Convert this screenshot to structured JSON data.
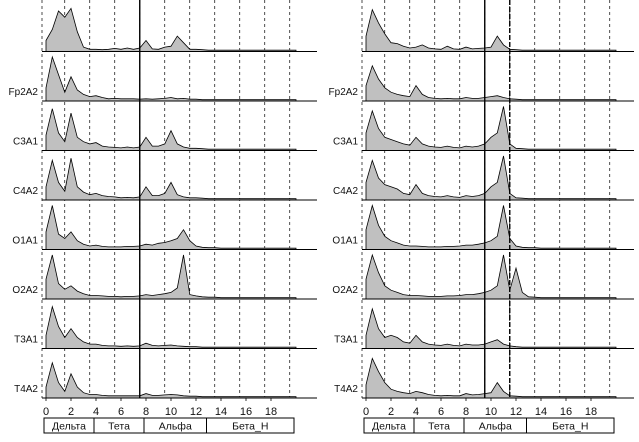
{
  "chart_data": {
    "type": "area",
    "title": "",
    "xlabel": "",
    "ylabel": "",
    "xlim": [
      0,
      20
    ],
    "x_ticks": [
      "0",
      "2",
      "4",
      "6",
      "8",
      "10",
      "12",
      "14",
      "16",
      "18"
    ],
    "x_tick_values": [
      0,
      2,
      4,
      6,
      8,
      10,
      12,
      14,
      16,
      18
    ],
    "band_boundaries": [
      1.5,
      3.5,
      5.5,
      7.5,
      9.5,
      11.5,
      13.5,
      15.5,
      17.5,
      19.5
    ],
    "bands": [
      {
        "name": "Дельта",
        "range": [
          0,
          4
        ]
      },
      {
        "name": "Тета",
        "range": [
          4,
          8
        ]
      },
      {
        "name": "Альфа",
        "range": [
          8,
          13
        ]
      },
      {
        "name": "Бета_Н",
        "range": [
          13,
          20
        ]
      }
    ],
    "fill_color": "#c0c0c0",
    "line_color": "#000000",
    "x": [
      0,
      0.5,
      1,
      1.5,
      2,
      2.5,
      3,
      3.5,
      4,
      4.5,
      5,
      5.5,
      6,
      6.5,
      7,
      7.5,
      8,
      8.5,
      9,
      9.5,
      10,
      10.5,
      11,
      11.5,
      12,
      12.5,
      13,
      13.5,
      14,
      14.5,
      15,
      15.5,
      16,
      16.5,
      17,
      17.5,
      18,
      18.5,
      19,
      19.5,
      20
    ],
    "panels": [
      {
        "cursor_freq": 7.5,
        "channels": [
          {
            "label": "",
            "values": [
              0.25,
              0.5,
              0.92,
              0.78,
              0.98,
              0.45,
              0.1,
              0.05,
              0.05,
              0.04,
              0.05,
              0.07,
              0.05,
              0.08,
              0.05,
              0.08,
              0.25,
              0.06,
              0.05,
              0.1,
              0.12,
              0.35,
              0.2,
              0.05,
              0.05,
              0.04,
              0.03,
              0.03,
              0.03,
              0.03,
              0.03,
              0.03,
              0.03,
              0.03,
              0.03,
              0.03,
              0.03,
              0.03,
              0.03,
              0.03,
              0.03
            ]
          },
          {
            "label": "Fp2A2",
            "values": [
              0.3,
              1.0,
              0.6,
              0.2,
              0.55,
              0.25,
              0.15,
              0.1,
              0.12,
              0.08,
              0.05,
              0.06,
              0.05,
              0.05,
              0.05,
              0.04,
              0.05,
              0.04,
              0.05,
              0.06,
              0.08,
              0.05,
              0.06,
              0.04,
              0.04,
              0.03,
              0.03,
              0.03,
              0.03,
              0.03,
              0.03,
              0.03,
              0.03,
              0.03,
              0.03,
              0.03,
              0.03,
              0.03,
              0.03,
              0.03,
              0.03
            ]
          },
          {
            "label": "C3A1",
            "values": [
              0.35,
              0.95,
              0.4,
              0.2,
              0.85,
              0.3,
              0.2,
              0.15,
              0.18,
              0.1,
              0.08,
              0.07,
              0.06,
              0.08,
              0.06,
              0.08,
              0.3,
              0.1,
              0.1,
              0.15,
              0.45,
              0.15,
              0.08,
              0.05,
              0.05,
              0.04,
              0.03,
              0.03,
              0.03,
              0.03,
              0.03,
              0.03,
              0.03,
              0.03,
              0.03,
              0.03,
              0.03,
              0.03,
              0.03,
              0.03,
              0.03
            ]
          },
          {
            "label": "C4A2",
            "values": [
              0.3,
              0.9,
              0.4,
              0.2,
              0.95,
              0.3,
              0.18,
              0.12,
              0.15,
              0.1,
              0.08,
              0.07,
              0.05,
              0.06,
              0.05,
              0.07,
              0.3,
              0.1,
              0.1,
              0.15,
              0.4,
              0.12,
              0.07,
              0.05,
              0.05,
              0.04,
              0.03,
              0.03,
              0.03,
              0.03,
              0.03,
              0.03,
              0.03,
              0.03,
              0.03,
              0.03,
              0.03,
              0.03,
              0.03,
              0.03,
              0.03
            ]
          },
          {
            "label": "O1A1",
            "values": [
              0.4,
              1.0,
              0.35,
              0.25,
              0.4,
              0.2,
              0.12,
              0.08,
              0.1,
              0.07,
              0.06,
              0.06,
              0.06,
              0.07,
              0.07,
              0.08,
              0.12,
              0.1,
              0.14,
              0.16,
              0.2,
              0.25,
              0.45,
              0.2,
              0.08,
              0.05,
              0.04,
              0.04,
              0.03,
              0.03,
              0.03,
              0.03,
              0.03,
              0.03,
              0.03,
              0.03,
              0.03,
              0.03,
              0.03,
              0.03,
              0.03
            ]
          },
          {
            "label": "O2A2",
            "values": [
              0.45,
              1.0,
              0.35,
              0.22,
              0.3,
              0.18,
              0.12,
              0.08,
              0.08,
              0.07,
              0.06,
              0.06,
              0.05,
              0.06,
              0.06,
              0.07,
              0.1,
              0.08,
              0.1,
              0.12,
              0.15,
              0.25,
              1.0,
              0.1,
              0.07,
              0.05,
              0.04,
              0.04,
              0.03,
              0.03,
              0.03,
              0.03,
              0.03,
              0.03,
              0.03,
              0.03,
              0.03,
              0.03,
              0.03,
              0.03,
              0.03
            ]
          },
          {
            "label": "T3A1",
            "values": [
              0.3,
              0.95,
              0.5,
              0.25,
              0.45,
              0.25,
              0.15,
              0.1,
              0.1,
              0.07,
              0.06,
              0.06,
              0.05,
              0.06,
              0.05,
              0.06,
              0.12,
              0.07,
              0.06,
              0.07,
              0.08,
              0.06,
              0.05,
              0.04,
              0.04,
              0.03,
              0.03,
              0.03,
              0.03,
              0.03,
              0.03,
              0.03,
              0.03,
              0.03,
              0.03,
              0.03,
              0.03,
              0.03,
              0.03,
              0.03,
              0.03
            ]
          },
          {
            "label": "T4A2",
            "values": [
              0.25,
              0.8,
              0.35,
              0.15,
              0.55,
              0.25,
              0.12,
              0.08,
              0.08,
              0.06,
              0.05,
              0.05,
              0.05,
              0.05,
              0.05,
              0.05,
              0.1,
              0.06,
              0.06,
              0.07,
              0.08,
              0.07,
              0.05,
              0.04,
              0.04,
              0.03,
              0.03,
              0.03,
              0.03,
              0.03,
              0.03,
              0.03,
              0.03,
              0.03,
              0.03,
              0.03,
              0.03,
              0.03,
              0.03,
              0.03,
              0.03
            ]
          }
        ]
      },
      {
        "cursor_freq": 9.5,
        "cursor_freq_2": 11.5,
        "channels": [
          {
            "label": "",
            "values": [
              0.35,
              0.95,
              0.65,
              0.4,
              0.2,
              0.18,
              0.12,
              0.08,
              0.1,
              0.15,
              0.08,
              0.06,
              0.05,
              0.12,
              0.06,
              0.05,
              0.1,
              0.06,
              0.07,
              0.08,
              0.1,
              0.35,
              0.15,
              0.05,
              0.04,
              0.03,
              0.03,
              0.03,
              0.03,
              0.03,
              0.03,
              0.03,
              0.03,
              0.03,
              0.03,
              0.03,
              0.03,
              0.03,
              0.03,
              0.03,
              0.03
            ]
          },
          {
            "label": "Fp2A2",
            "values": [
              0.35,
              0.8,
              0.5,
              0.3,
              0.2,
              0.15,
              0.12,
              0.1,
              0.35,
              0.15,
              0.08,
              0.06,
              0.05,
              0.06,
              0.05,
              0.05,
              0.08,
              0.06,
              0.06,
              0.08,
              0.1,
              0.12,
              0.08,
              0.05,
              0.04,
              0.03,
              0.03,
              0.03,
              0.03,
              0.03,
              0.03,
              0.03,
              0.03,
              0.03,
              0.03,
              0.03,
              0.03,
              0.03,
              0.03,
              0.03,
              0.03
            ]
          },
          {
            "label": "C3A1",
            "values": [
              0.4,
              0.9,
              0.5,
              0.3,
              0.25,
              0.2,
              0.15,
              0.12,
              0.3,
              0.15,
              0.1,
              0.08,
              0.07,
              0.1,
              0.07,
              0.06,
              0.1,
              0.08,
              0.1,
              0.15,
              0.3,
              0.4,
              1.0,
              0.15,
              0.05,
              0.04,
              0.03,
              0.03,
              0.03,
              0.03,
              0.03,
              0.03,
              0.03,
              0.03,
              0.03,
              0.03,
              0.03,
              0.03,
              0.03,
              0.03,
              0.03
            ]
          },
          {
            "label": "C4A2",
            "values": [
              0.4,
              0.9,
              0.5,
              0.35,
              0.3,
              0.25,
              0.15,
              0.12,
              0.35,
              0.15,
              0.1,
              0.08,
              0.07,
              0.1,
              0.07,
              0.06,
              0.1,
              0.08,
              0.1,
              0.15,
              0.3,
              0.4,
              1.0,
              0.15,
              0.05,
              0.04,
              0.03,
              0.03,
              0.03,
              0.03,
              0.03,
              0.03,
              0.03,
              0.03,
              0.03,
              0.03,
              0.03,
              0.03,
              0.03,
              0.03,
              0.03
            ]
          },
          {
            "label": "O1A1",
            "values": [
              0.45,
              1.0,
              0.55,
              0.3,
              0.2,
              0.15,
              0.1,
              0.08,
              0.08,
              0.07,
              0.06,
              0.06,
              0.06,
              0.07,
              0.07,
              0.08,
              0.1,
              0.1,
              0.12,
              0.15,
              0.2,
              0.3,
              1.0,
              0.25,
              0.08,
              0.05,
              0.04,
              0.04,
              0.03,
              0.03,
              0.03,
              0.03,
              0.03,
              0.03,
              0.03,
              0.03,
              0.03,
              0.03,
              0.03,
              0.03,
              0.03
            ]
          },
          {
            "label": "O2A2",
            "values": [
              0.45,
              1.0,
              0.6,
              0.3,
              0.2,
              0.15,
              0.1,
              0.08,
              0.08,
              0.07,
              0.06,
              0.06,
              0.06,
              0.07,
              0.07,
              0.08,
              0.1,
              0.1,
              0.12,
              0.15,
              0.2,
              0.3,
              1.0,
              0.2,
              0.7,
              0.15,
              0.05,
              0.04,
              0.03,
              0.03,
              0.03,
              0.03,
              0.03,
              0.03,
              0.03,
              0.03,
              0.03,
              0.03,
              0.03,
              0.03,
              0.03
            ]
          },
          {
            "label": "T3A1",
            "values": [
              0.3,
              0.9,
              0.45,
              0.25,
              0.3,
              0.25,
              0.15,
              0.12,
              0.3,
              0.15,
              0.1,
              0.08,
              0.07,
              0.1,
              0.07,
              0.06,
              0.1,
              0.08,
              0.08,
              0.1,
              0.15,
              0.2,
              0.1,
              0.06,
              0.04,
              0.03,
              0.03,
              0.03,
              0.03,
              0.03,
              0.03,
              0.03,
              0.03,
              0.03,
              0.03,
              0.03,
              0.03,
              0.03,
              0.03,
              0.03,
              0.03
            ]
          },
          {
            "label": "T4A2",
            "values": [
              0.3,
              0.9,
              0.6,
              0.35,
              0.2,
              0.15,
              0.12,
              0.1,
              0.15,
              0.12,
              0.08,
              0.06,
              0.05,
              0.06,
              0.05,
              0.05,
              0.1,
              0.07,
              0.08,
              0.1,
              0.12,
              0.35,
              0.15,
              0.05,
              0.04,
              0.03,
              0.03,
              0.03,
              0.03,
              0.03,
              0.03,
              0.03,
              0.03,
              0.03,
              0.03,
              0.03,
              0.03,
              0.03,
              0.03,
              0.03,
              0.03
            ]
          }
        ]
      }
    ]
  }
}
